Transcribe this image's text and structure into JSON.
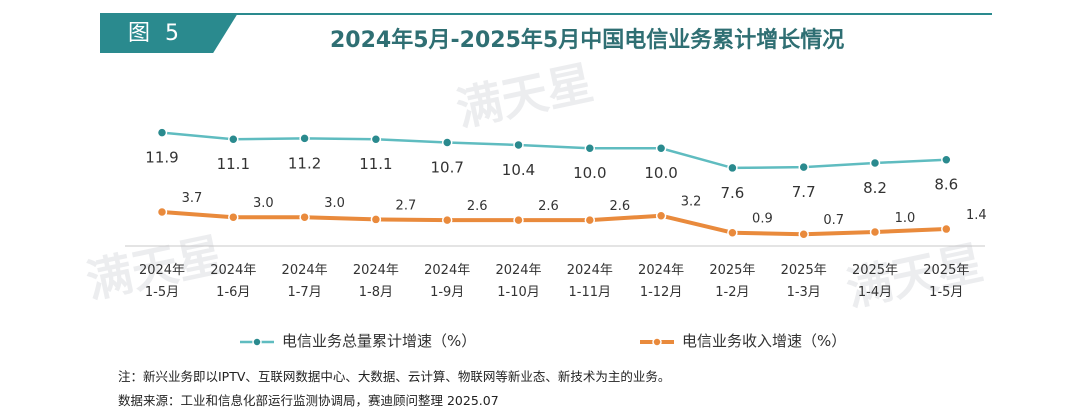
{
  "header": {
    "tag": "图 5",
    "title": "2024年5月-2025年5月中国电信业务累计增长情况"
  },
  "watermark": "满天星",
  "colors": {
    "teal": "#2a8a8e",
    "series1": "#5fbcc0",
    "series2": "#e98a3c"
  },
  "chart_data": {
    "type": "line",
    "categories": [
      [
        "2024年",
        "1-5月"
      ],
      [
        "2024年",
        "1-6月"
      ],
      [
        "2024年",
        "1-7月"
      ],
      [
        "2024年",
        "1-8月"
      ],
      [
        "2024年",
        "1-9月"
      ],
      [
        "2024年",
        "1-10月"
      ],
      [
        "2024年",
        "1-11月"
      ],
      [
        "2024年",
        "1-12月"
      ],
      [
        "2025年",
        "1-2月"
      ],
      [
        "2025年",
        "1-3月"
      ],
      [
        "2025年",
        "1-4月"
      ],
      [
        "2025年",
        "1-5月"
      ]
    ],
    "series": [
      {
        "name": "电信业务总量累计增速（%）",
        "values": [
          11.9,
          11.1,
          11.2,
          11.1,
          10.7,
          10.4,
          10.0,
          10.0,
          7.6,
          7.7,
          8.2,
          8.6
        ],
        "labels": [
          "11.9",
          "11.1",
          "11.2",
          "11.1",
          "10.7",
          "10.4",
          "10.0",
          "10.0",
          "7.6",
          "7.7",
          "8.2",
          "8.6"
        ]
      },
      {
        "name": "电信业务收入增速（%）",
        "values": [
          3.7,
          3.0,
          3.0,
          2.7,
          2.6,
          2.6,
          2.6,
          3.2,
          0.9,
          0.7,
          1.0,
          1.4
        ],
        "labels": [
          "3.7",
          "3.0",
          "3.0",
          "2.7",
          "2.6",
          "2.6",
          "2.6",
          "3.2",
          "0.9",
          "0.7",
          "1.0",
          "1.4"
        ]
      }
    ],
    "legend_position": "bottom",
    "grid": false
  },
  "notes": {
    "note": "注：新兴业务即以IPTV、互联网数据中心、大数据、云计算、物联网等新业态、新技术为主的业务。",
    "source": "数据来源：工业和信息化部运行监测协调局，赛迪顾问整理 2025.07"
  }
}
